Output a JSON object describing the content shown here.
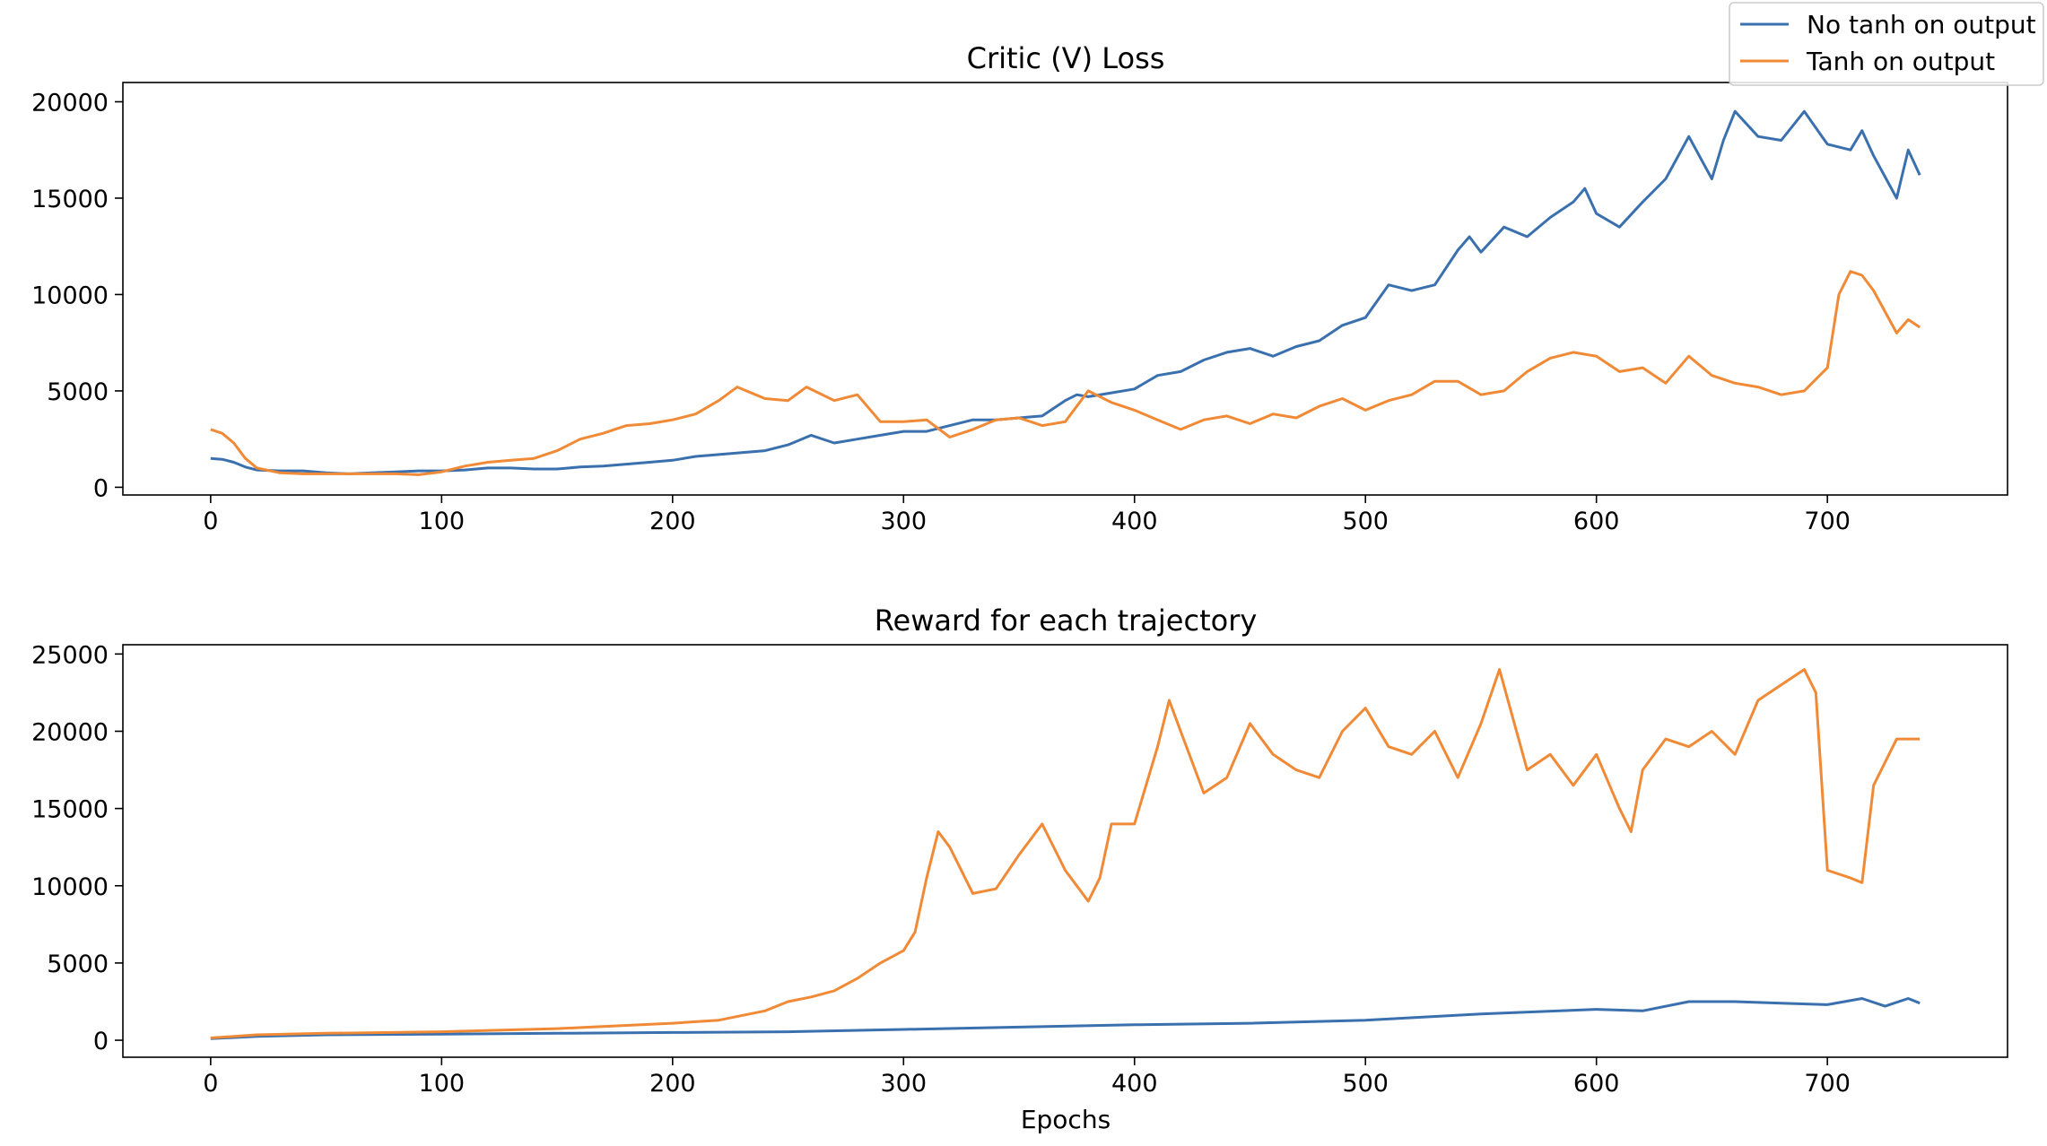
{
  "legend": {
    "placement": "top-right",
    "entries": [
      {
        "label": "No tanh on output",
        "color": "#3a70ad"
      },
      {
        "label": "Tanh on output",
        "color": "#f08a36"
      }
    ]
  },
  "chart_data": [
    {
      "type": "line",
      "title": "Critic (V) Loss",
      "xlabel": "",
      "ylabel": "",
      "xlim": [
        -38,
        778
      ],
      "ylim": [
        -400,
        21000
      ],
      "xticks": [
        0,
        100,
        200,
        300,
        400,
        500,
        600,
        700
      ],
      "yticks": [
        0,
        5000,
        10000,
        15000,
        20000
      ],
      "grid": false,
      "series": [
        {
          "name": "No tanh on output",
          "color": "#3a70ad",
          "x": [
            0,
            5,
            10,
            15,
            20,
            30,
            40,
            50,
            60,
            70,
            80,
            90,
            100,
            110,
            120,
            130,
            140,
            150,
            160,
            170,
            180,
            190,
            200,
            210,
            220,
            230,
            240,
            250,
            260,
            270,
            280,
            290,
            300,
            310,
            320,
            330,
            340,
            350,
            360,
            370,
            375,
            380,
            390,
            400,
            410,
            420,
            430,
            440,
            450,
            460,
            470,
            480,
            490,
            500,
            510,
            520,
            530,
            540,
            545,
            550,
            560,
            570,
            580,
            590,
            595,
            600,
            610,
            620,
            630,
            640,
            650,
            655,
            660,
            670,
            680,
            690,
            700,
            710,
            715,
            720,
            730,
            735,
            740
          ],
          "y": [
            1500,
            1450,
            1300,
            1050,
            900,
            850,
            850,
            750,
            700,
            750,
            800,
            850,
            850,
            900,
            1000,
            1000,
            950,
            950,
            1050,
            1100,
            1200,
            1300,
            1400,
            1600,
            1700,
            1800,
            1900,
            2200,
            2700,
            2300,
            2500,
            2700,
            2900,
            2900,
            3200,
            3500,
            3500,
            3600,
            3700,
            4500,
            4800,
            4700,
            4900,
            5100,
            5800,
            6000,
            6600,
            7000,
            7200,
            6800,
            7300,
            7600,
            8400,
            8800,
            10500,
            10200,
            10500,
            12300,
            13000,
            12200,
            13500,
            13000,
            14000,
            14800,
            15500,
            14200,
            13500,
            14800,
            16000,
            18200,
            16000,
            18000,
            19500,
            18200,
            18000,
            19500,
            17800,
            17500,
            18500,
            17200,
            15000,
            17500,
            16200
          ]
        },
        {
          "name": "Tanh on output",
          "color": "#f08a36",
          "x": [
            0,
            5,
            10,
            15,
            20,
            30,
            40,
            50,
            60,
            70,
            80,
            90,
            100,
            110,
            120,
            130,
            140,
            150,
            160,
            170,
            180,
            190,
            200,
            210,
            220,
            228,
            240,
            250,
            258,
            270,
            280,
            290,
            300,
            310,
            320,
            330,
            340,
            350,
            360,
            370,
            380,
            390,
            400,
            410,
            420,
            430,
            440,
            450,
            460,
            470,
            480,
            490,
            500,
            510,
            520,
            530,
            540,
            550,
            560,
            570,
            580,
            590,
            600,
            610,
            620,
            630,
            640,
            650,
            660,
            670,
            680,
            690,
            700,
            705,
            710,
            715,
            720,
            730,
            735,
            740
          ],
          "y": [
            3000,
            2800,
            2300,
            1500,
            1000,
            750,
            700,
            700,
            700,
            700,
            700,
            650,
            800,
            1100,
            1300,
            1400,
            1500,
            1900,
            2500,
            2800,
            3200,
            3300,
            3500,
            3800,
            4500,
            5200,
            4600,
            4500,
            5200,
            4500,
            4800,
            3400,
            3400,
            3500,
            2600,
            3000,
            3500,
            3600,
            3200,
            3400,
            5000,
            4400,
            4000,
            3500,
            3000,
            3500,
            3700,
            3300,
            3800,
            3600,
            4200,
            4600,
            4000,
            4500,
            4800,
            5500,
            5500,
            4800,
            5000,
            6000,
            6700,
            7000,
            6800,
            6000,
            6200,
            5400,
            6800,
            5800,
            5400,
            5200,
            4800,
            5000,
            6200,
            10000,
            11200,
            11000,
            10200,
            8000,
            8700,
            8300
          ]
        }
      ]
    },
    {
      "type": "line",
      "title": "Reward for each trajectory",
      "xlabel": "Epochs",
      "ylabel": "",
      "xlim": [
        -38,
        778
      ],
      "ylim": [
        -1100,
        25600
      ],
      "xticks": [
        0,
        100,
        200,
        300,
        400,
        500,
        600,
        700
      ],
      "yticks": [
        0,
        5000,
        10000,
        15000,
        20000,
        25000
      ],
      "grid": false,
      "series": [
        {
          "name": "No tanh on output",
          "color": "#3a70ad",
          "x": [
            0,
            20,
            50,
            100,
            150,
            200,
            250,
            300,
            350,
            400,
            450,
            500,
            550,
            600,
            620,
            640,
            660,
            680,
            700,
            715,
            725,
            735,
            740
          ],
          "y": [
            100,
            250,
            350,
            400,
            450,
            500,
            550,
            700,
            850,
            1000,
            1100,
            1300,
            1700,
            2000,
            1900,
            2500,
            2500,
            2400,
            2300,
            2700,
            2200,
            2700,
            2400
          ]
        },
        {
          "name": "Tanh on output",
          "color": "#f08a36",
          "x": [
            0,
            20,
            50,
            100,
            150,
            200,
            220,
            240,
            250,
            260,
            270,
            280,
            290,
            300,
            305,
            310,
            315,
            320,
            330,
            340,
            350,
            360,
            370,
            380,
            385,
            390,
            400,
            410,
            415,
            420,
            430,
            440,
            450,
            460,
            470,
            480,
            490,
            500,
            510,
            520,
            530,
            540,
            550,
            558,
            570,
            580,
            590,
            600,
            610,
            615,
            620,
            630,
            640,
            650,
            660,
            670,
            680,
            690,
            695,
            700,
            710,
            715,
            720,
            730,
            740
          ],
          "y": [
            150,
            350,
            450,
            550,
            750,
            1100,
            1300,
            1900,
            2500,
            2800,
            3200,
            4000,
            5000,
            5800,
            7000,
            10500,
            13500,
            12500,
            9500,
            9800,
            12000,
            14000,
            11000,
            9000,
            10500,
            14000,
            14000,
            19000,
            22000,
            20000,
            16000,
            17000,
            20500,
            18500,
            17500,
            17000,
            20000,
            21500,
            19000,
            18500,
            20000,
            17000,
            20500,
            24000,
            17500,
            18500,
            16500,
            18500,
            15000,
            13500,
            17500,
            19500,
            19000,
            20000,
            18500,
            22000,
            23000,
            24000,
            22500,
            11000,
            10500,
            10200,
            16500,
            19500,
            19500
          ]
        }
      ]
    }
  ]
}
